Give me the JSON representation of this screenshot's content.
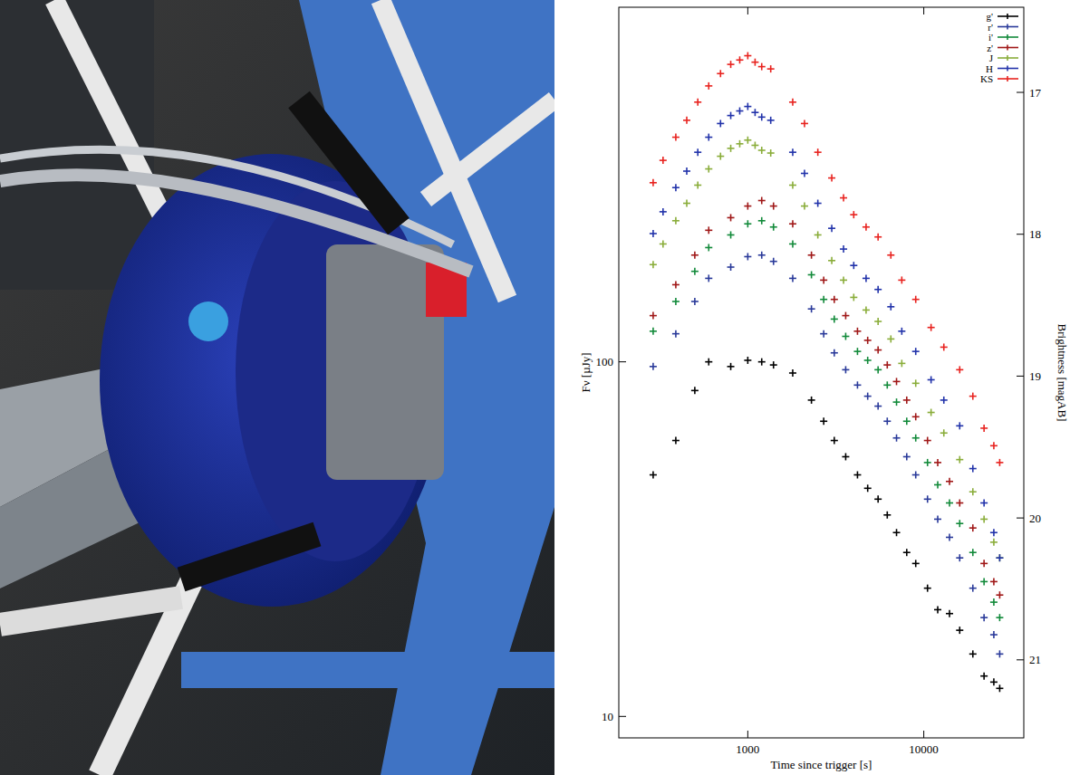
{
  "chart_data": {
    "type": "scatter",
    "xlabel": "Time since trigger [s]",
    "ylabel": "Fν [µJy]",
    "y2label": "Brightness [magAB]",
    "log": true,
    "grid": false,
    "legend": "upper right",
    "marker": "plus",
    "xlim": [
      185,
      37000
    ],
    "xticks": [
      1000,
      10000
    ],
    "ylim": [
      8.7,
      1000
    ],
    "yticks": [
      10,
      100
    ],
    "y2lim": [
      21.55,
      16.4
    ],
    "y2ticks": [
      17,
      18,
      19,
      20,
      21
    ],
    "series": [
      {
        "name": "g'",
        "color": "#000000",
        "x": [
          290,
          390,
          500,
          600,
          800,
          1000,
          1200,
          1400,
          1800,
          2300,
          2700,
          3100,
          3600,
          4200,
          4800,
          5500,
          6200,
          7000,
          8000,
          9000,
          10500,
          12000,
          14000,
          16000,
          19000,
          22000,
          25000,
          27000
        ],
        "values": [
          48,
          60,
          83,
          100,
          97,
          101,
          100,
          98,
          93,
          78,
          68,
          60,
          54,
          48,
          44,
          41,
          37,
          33,
          29,
          27,
          23,
          20,
          19.5,
          17.5,
          15,
          13,
          12.5,
          12
        ]
      },
      {
        "name": "r'",
        "color": "#2a3a9a",
        "x": [
          290,
          390,
          500,
          600,
          800,
          1000,
          1200,
          1400,
          1800,
          2300,
          2700,
          3100,
          3600,
          4200,
          4800,
          5500,
          6200,
          7000,
          8000,
          9000,
          10500,
          12000,
          14000,
          16000,
          19000,
          22000,
          25000,
          27000
        ],
        "values": [
          97,
          120,
          148,
          172,
          185,
          198,
          200,
          192,
          172,
          141,
          120,
          106,
          95,
          86,
          80,
          75,
          68,
          61,
          54,
          48,
          41,
          36,
          32,
          28,
          23,
          19,
          17,
          15
        ]
      },
      {
        "name": "i'",
        "color": "#128a3a",
        "x": [
          290,
          390,
          500,
          600,
          800,
          1000,
          1200,
          1400,
          1800,
          2300,
          2700,
          3100,
          3600,
          4200,
          4800,
          5500,
          6200,
          7000,
          8000,
          9000,
          10500,
          12000,
          14000,
          16000,
          19000,
          22000,
          25000,
          27000
        ],
        "values": [
          122,
          148,
          180,
          210,
          228,
          245,
          250,
          240,
          215,
          176,
          150,
          132,
          118,
          107,
          101,
          95,
          86,
          77,
          68,
          61,
          52,
          45,
          40,
          35,
          29,
          24,
          21,
          19
        ]
      },
      {
        "name": "z'",
        "color": "#a01818",
        "x": [
          290,
          390,
          500,
          600,
          800,
          1000,
          1200,
          1400,
          1800,
          2300,
          2700,
          3100,
          3600,
          4200,
          4800,
          5500,
          6200,
          7000,
          8000,
          9000,
          10500,
          12000,
          14000,
          16000,
          19000,
          22000,
          25000,
          27000
        ],
        "values": [
          135,
          165,
          200,
          235,
          255,
          275,
          285,
          275,
          245,
          200,
          170,
          150,
          135,
          122,
          115,
          108,
          98,
          88,
          78,
          70,
          60,
          52,
          46,
          40,
          34,
          27,
          24,
          22
        ]
      },
      {
        "name": "J",
        "color": "#8aad3a",
        "x": [
          290,
          330,
          390,
          450,
          520,
          600,
          700,
          800,
          900,
          1000,
          1100,
          1200,
          1350,
          1800,
          2100,
          2500,
          3000,
          3500,
          4000,
          4700,
          5500,
          6500,
          7500,
          9000,
          11000,
          13000,
          16000,
          19000,
          22000,
          25000,
          27000
        ],
        "values": [
          188,
          215,
          250,
          280,
          315,
          350,
          380,
          400,
          412,
          422,
          408,
          395,
          388,
          315,
          275,
          228,
          193,
          170,
          152,
          140,
          130,
          116,
          99,
          87,
          72,
          63,
          53,
          43,
          36,
          31,
          28
        ]
      },
      {
        "name": "H",
        "color": "#2233aa",
        "x": [
          290,
          330,
          390,
          450,
          520,
          600,
          700,
          800,
          900,
          1000,
          1100,
          1200,
          1350,
          1800,
          2100,
          2500,
          3000,
          3500,
          4000,
          4700,
          5500,
          6500,
          7500,
          9000,
          11000,
          13000,
          16000,
          19000,
          22000,
          25000,
          27000
        ],
        "values": [
          230,
          265,
          310,
          345,
          390,
          430,
          470,
          495,
          510,
          525,
          505,
          490,
          480,
          390,
          340,
          280,
          238,
          208,
          187,
          172,
          160,
          143,
          122,
          107,
          89,
          78,
          66,
          50,
          40,
          33,
          28
        ]
      },
      {
        "name": "KS",
        "color": "#e8231f",
        "x": [
          290,
          330,
          390,
          450,
          520,
          600,
          700,
          800,
          900,
          1000,
          1100,
          1200,
          1350,
          1800,
          2100,
          2500,
          3000,
          3500,
          4000,
          4700,
          5500,
          6500,
          7500,
          9000,
          11000,
          13000,
          16000,
          19000,
          22000,
          25000,
          27000
        ],
        "values": [
          320,
          370,
          430,
          480,
          540,
          600,
          650,
          690,
          710,
          730,
          700,
          680,
          670,
          540,
          470,
          390,
          330,
          290,
          260,
          240,
          225,
          200,
          170,
          150,
          125,
          110,
          95,
          80,
          65,
          58,
          52
        ]
      }
    ]
  }
}
